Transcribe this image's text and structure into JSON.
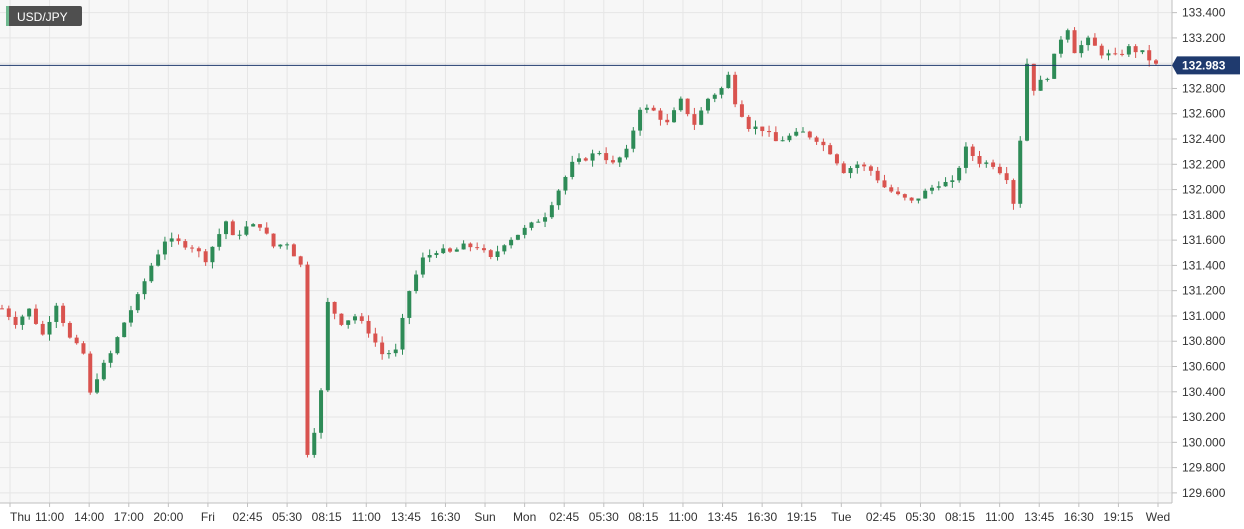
{
  "chart_data": {
    "type": "candlestick",
    "symbol": "USD/JPY",
    "last_price": 132.983,
    "last_price_label": "132.983",
    "y_ticks": [
      "133.400",
      "133.200",
      "133.000",
      "132.800",
      "132.600",
      "132.400",
      "132.200",
      "132.000",
      "131.800",
      "131.600",
      "131.400",
      "131.200",
      "131.000",
      "130.800",
      "130.600",
      "130.400",
      "130.200",
      "130.000",
      "129.800",
      "129.600"
    ],
    "ylim": [
      129.52,
      133.5
    ],
    "x_ticks": [
      "Thu",
      "11:00",
      "14:00",
      "17:00",
      "20:00",
      "Fri",
      "02:45",
      "05:30",
      "08:15",
      "11:00",
      "13:45",
      "16:30",
      "Sun",
      "Mon",
      "02:45",
      "05:30",
      "08:15",
      "11:00",
      "13:45",
      "16:30",
      "19:15",
      "Tue",
      "02:45",
      "05:30",
      "08:15",
      "11:00",
      "13:45",
      "16:30",
      "19:15",
      "Wed"
    ],
    "grid": true,
    "colors": {
      "up": "#2e8b57",
      "down": "#d9534f",
      "price_line": "#1f3a6e",
      "price_label_bg": "#1f3a6e",
      "symbol_bg": "#4f4f4f",
      "grid": "#e6e6e6",
      "plot_bg": "#f7f7f7"
    },
    "close_path": [
      [
        0,
        131.06
      ],
      [
        2,
        130.95
      ],
      [
        4,
        131.05
      ],
      [
        6,
        130.85
      ],
      [
        8,
        131.1
      ],
      [
        10,
        130.82
      ],
      [
        12,
        130.7
      ],
      [
        13,
        130.38
      ],
      [
        14,
        130.52
      ],
      [
        16,
        130.7
      ],
      [
        18,
        130.95
      ],
      [
        20,
        131.15
      ],
      [
        22,
        131.4
      ],
      [
        24,
        131.6
      ],
      [
        26,
        131.58
      ],
      [
        28,
        131.55
      ],
      [
        30,
        131.45
      ],
      [
        32,
        131.65
      ],
      [
        33,
        131.75
      ],
      [
        34,
        131.62
      ],
      [
        36,
        131.7
      ],
      [
        38,
        131.72
      ],
      [
        40,
        131.55
      ],
      [
        42,
        131.58
      ],
      [
        44,
        131.4
      ],
      [
        45,
        129.92
      ],
      [
        46,
        130.1
      ],
      [
        47,
        130.4
      ],
      [
        48,
        131.1
      ],
      [
        50,
        130.95
      ],
      [
        52,
        131.0
      ],
      [
        54,
        130.88
      ],
      [
        56,
        130.7
      ],
      [
        58,
        130.72
      ],
      [
        60,
        131.2
      ],
      [
        62,
        131.45
      ],
      [
        64,
        131.52
      ],
      [
        66,
        131.5
      ],
      [
        68,
        131.55
      ],
      [
        70,
        131.55
      ],
      [
        72,
        131.45
      ],
      [
        74,
        131.58
      ],
      [
        76,
        131.65
      ],
      [
        78,
        131.72
      ],
      [
        80,
        131.8
      ],
      [
        82,
        132.0
      ],
      [
        84,
        132.2
      ],
      [
        86,
        132.25
      ],
      [
        88,
        132.3
      ],
      [
        90,
        132.2
      ],
      [
        92,
        132.3
      ],
      [
        94,
        132.65
      ],
      [
        96,
        132.62
      ],
      [
        98,
        132.52
      ],
      [
        100,
        132.7
      ],
      [
        102,
        132.52
      ],
      [
        104,
        132.72
      ],
      [
        106,
        132.8
      ],
      [
        107,
        132.9
      ],
      [
        108,
        132.7
      ],
      [
        110,
        132.5
      ],
      [
        112,
        132.48
      ],
      [
        114,
        132.38
      ],
      [
        116,
        132.42
      ],
      [
        118,
        132.45
      ],
      [
        120,
        132.4
      ],
      [
        122,
        132.3
      ],
      [
        124,
        132.15
      ],
      [
        126,
        132.2
      ],
      [
        128,
        132.15
      ],
      [
        130,
        132.02
      ],
      [
        132,
        131.95
      ],
      [
        134,
        131.9
      ],
      [
        136,
        131.98
      ],
      [
        138,
        132.05
      ],
      [
        140,
        132.05
      ],
      [
        142,
        132.32
      ],
      [
        144,
        132.22
      ],
      [
        146,
        132.2
      ],
      [
        148,
        132.1
      ],
      [
        149,
        131.9
      ],
      [
        150,
        132.4
      ],
      [
        151,
        133.0
      ],
      [
        152,
        132.8
      ],
      [
        154,
        132.9
      ],
      [
        156,
        133.2
      ],
      [
        157,
        133.28
      ],
      [
        158,
        133.1
      ],
      [
        160,
        133.18
      ],
      [
        162,
        133.08
      ],
      [
        164,
        133.05
      ],
      [
        166,
        133.12
      ],
      [
        168,
        133.08
      ],
      [
        170,
        132.983
      ]
    ]
  }
}
